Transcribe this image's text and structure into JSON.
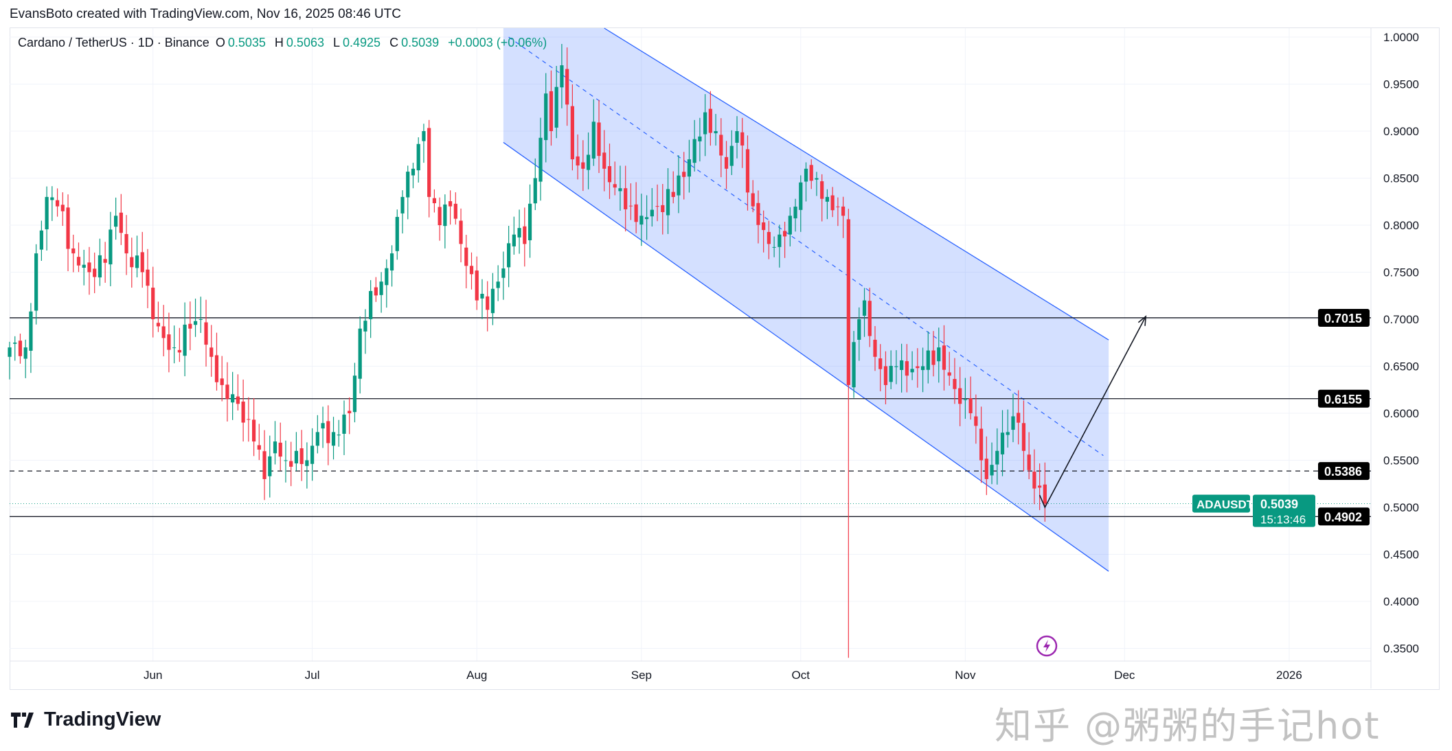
{
  "credit": "EvansBoto created with TradingView.com, Nov 16, 2025 08:46 UTC",
  "legend": {
    "symbol": "Cardano / TetherUS · 1D · Binance",
    "o_label": "O",
    "o": "0.5035",
    "h_label": "H",
    "h": "0.5063",
    "l_label": "L",
    "l": "0.4925",
    "c_label": "C",
    "c": "0.5039",
    "change": "+0.0003 (+0.06%)"
  },
  "colors": {
    "up": "#089981",
    "down": "#f23645",
    "channel": "#2962ff",
    "badge": "#000000",
    "current": "#089981"
  },
  "price_axis": [
    "1.0000",
    "0.9500",
    "0.9000",
    "0.8500",
    "0.8000",
    "0.7500",
    "0.7000",
    "0.6500",
    "0.6000",
    "0.5500",
    "0.5000",
    "0.4500",
    "0.4000",
    "0.3500"
  ],
  "time_axis": [
    {
      "label": "Jun",
      "date": "2025-06-01"
    },
    {
      "label": "Jul",
      "date": "2025-07-01"
    },
    {
      "label": "Aug",
      "date": "2025-08-01"
    },
    {
      "label": "Sep",
      "date": "2025-09-01"
    },
    {
      "label": "Oct",
      "date": "2025-10-01"
    },
    {
      "label": "Nov",
      "date": "2025-11-01"
    },
    {
      "label": "Dec",
      "date": "2025-12-01"
    },
    {
      "label": "2026",
      "date": "2026-01-01"
    }
  ],
  "levels": [
    {
      "price": 0.7015,
      "label": "0.7015",
      "style": "solid"
    },
    {
      "price": 0.6155,
      "label": "0.6155",
      "style": "solid"
    },
    {
      "price": 0.5386,
      "label": "0.5386",
      "style": "dashed"
    },
    {
      "price": 0.4902,
      "label": "0.4902",
      "style": "solid"
    }
  ],
  "current": {
    "symbol": "ADAUSDT",
    "price": 0.5039,
    "label": "0.5039",
    "countdown": "15:13:46"
  },
  "chart_data": {
    "type": "candlestick",
    "symbol": "ADAUSDT",
    "interval": "1D",
    "ylim": [
      0.33,
      1.01
    ],
    "key_closes": [
      [
        "2025-05-05",
        0.67
      ],
      [
        "2025-05-08",
        0.67
      ],
      [
        "2025-05-10",
        0.77
      ],
      [
        "2025-05-12",
        0.83
      ],
      [
        "2025-05-14",
        0.82
      ],
      [
        "2025-05-17",
        0.77
      ],
      [
        "2025-05-20",
        0.75
      ],
      [
        "2025-05-23",
        0.76
      ],
      [
        "2025-05-25",
        0.81
      ],
      [
        "2025-05-27",
        0.77
      ],
      [
        "2025-05-30",
        0.75
      ],
      [
        "2025-06-01",
        0.7
      ],
      [
        "2025-06-03",
        0.68
      ],
      [
        "2025-06-05",
        0.67
      ],
      [
        "2025-06-08",
        0.69
      ],
      [
        "2025-06-10",
        0.7
      ],
      [
        "2025-06-12",
        0.66
      ],
      [
        "2025-06-14",
        0.63
      ],
      [
        "2025-06-17",
        0.61
      ],
      [
        "2025-06-20",
        0.57
      ],
      [
        "2025-06-22",
        0.53
      ],
      [
        "2025-06-24",
        0.57
      ],
      [
        "2025-06-26",
        0.55
      ],
      [
        "2025-06-28",
        0.56
      ],
      [
        "2025-06-30",
        0.55
      ],
      [
        "2025-07-02",
        0.58
      ],
      [
        "2025-07-05",
        0.58
      ],
      [
        "2025-07-08",
        0.6
      ],
      [
        "2025-07-10",
        0.69
      ],
      [
        "2025-07-12",
        0.73
      ],
      [
        "2025-07-14",
        0.74
      ],
      [
        "2025-07-16",
        0.77
      ],
      [
        "2025-07-18",
        0.83
      ],
      [
        "2025-07-20",
        0.86
      ],
      [
        "2025-07-22",
        0.9
      ],
      [
        "2025-07-23",
        0.83
      ],
      [
        "2025-07-25",
        0.8
      ],
      [
        "2025-07-27",
        0.82
      ],
      [
        "2025-07-29",
        0.78
      ],
      [
        "2025-08-01",
        0.72
      ],
      [
        "2025-08-03",
        0.71
      ],
      [
        "2025-08-05",
        0.74
      ],
      [
        "2025-08-08",
        0.79
      ],
      [
        "2025-08-10",
        0.78
      ],
      [
        "2025-08-12",
        0.85
      ],
      [
        "2025-08-14",
        0.94
      ],
      [
        "2025-08-15",
        0.9
      ],
      [
        "2025-08-17",
        0.97
      ],
      [
        "2025-08-19",
        0.87
      ],
      [
        "2025-08-21",
        0.86
      ],
      [
        "2025-08-23",
        0.91
      ],
      [
        "2025-08-25",
        0.86
      ],
      [
        "2025-08-27",
        0.84
      ],
      [
        "2025-08-30",
        0.82
      ],
      [
        "2025-09-01",
        0.81
      ],
      [
        "2025-09-04",
        0.82
      ],
      [
        "2025-09-07",
        0.83
      ],
      [
        "2025-09-10",
        0.87
      ],
      [
        "2025-09-13",
        0.92
      ],
      [
        "2025-09-15",
        0.9
      ],
      [
        "2025-09-17",
        0.86
      ],
      [
        "2025-09-19",
        0.9
      ],
      [
        "2025-09-22",
        0.82
      ],
      [
        "2025-09-25",
        0.78
      ],
      [
        "2025-09-27",
        0.79
      ],
      [
        "2025-09-29",
        0.81
      ],
      [
        "2025-10-02",
        0.86
      ],
      [
        "2025-10-04",
        0.85
      ],
      [
        "2025-10-06",
        0.83
      ],
      [
        "2025-10-09",
        0.81
      ],
      [
        "2025-10-10",
        0.63
      ],
      [
        "2025-10-12",
        0.7
      ],
      [
        "2025-10-13",
        0.72
      ],
      [
        "2025-10-15",
        0.66
      ],
      [
        "2025-10-17",
        0.63
      ],
      [
        "2025-10-19",
        0.65
      ],
      [
        "2025-10-21",
        0.64
      ],
      [
        "2025-10-24",
        0.65
      ],
      [
        "2025-10-27",
        0.67
      ],
      [
        "2025-10-29",
        0.64
      ],
      [
        "2025-10-31",
        0.61
      ],
      [
        "2025-11-02",
        0.6
      ],
      [
        "2025-11-04",
        0.55
      ],
      [
        "2025-11-05",
        0.53
      ],
      [
        "2025-11-07",
        0.56
      ],
      [
        "2025-11-09",
        0.58
      ],
      [
        "2025-11-11",
        0.59
      ],
      [
        "2025-11-12",
        0.56
      ],
      [
        "2025-11-14",
        0.52
      ],
      [
        "2025-11-16",
        0.5039
      ]
    ],
    "extreme_low": {
      "date": "2025-10-10",
      "price": 0.34
    },
    "channel": {
      "upper": [
        [
          "2025-08-25",
          1.0
        ],
        [
          "2025-11-28",
          0.678
        ]
      ],
      "lower": [
        [
          "2025-08-06",
          0.888
        ],
        [
          "2025-11-28",
          0.432
        ]
      ],
      "mid": [
        [
          "2025-08-07",
          1.0
        ],
        [
          "2025-11-27",
          0.555
        ]
      ]
    },
    "projection": [
      [
        "2025-11-15",
        0.513
      ],
      [
        "2025-11-16",
        0.5
      ],
      [
        "2025-12-05",
        0.703
      ]
    ]
  },
  "branding": {
    "logo": "TradingView",
    "watermark": "知乎 @粥粥的手记hot"
  }
}
